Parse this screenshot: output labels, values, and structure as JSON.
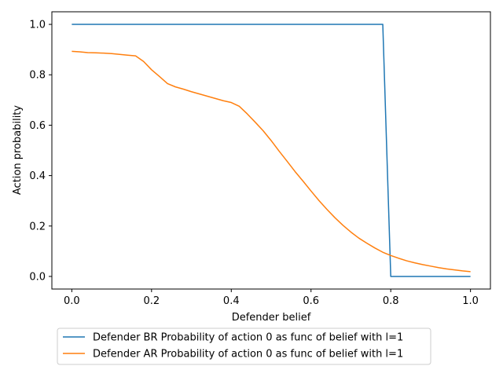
{
  "chart_data": {
    "type": "line",
    "xlabel": "Defender belief",
    "ylabel": "Action probability",
    "xlim": [
      -0.05,
      1.05
    ],
    "ylim": [
      -0.05,
      1.05
    ],
    "xticks": [
      0.0,
      0.2,
      0.4,
      0.6,
      0.8,
      1.0
    ],
    "xtick_labels": [
      "0.0",
      "0.2",
      "0.4",
      "0.6",
      "0.8",
      "1.0"
    ],
    "yticks": [
      0.0,
      0.2,
      0.4,
      0.6,
      0.8,
      1.0
    ],
    "ytick_labels": [
      "0.0",
      "0.2",
      "0.4",
      "0.6",
      "0.8",
      "1.0"
    ],
    "grid": false,
    "legend_position": "below plot",
    "series": [
      {
        "name": "Defender BR Probability of action 0 as func of belief with l=1",
        "color": "#1f77b4",
        "x": [
          0.0,
          0.78,
          0.8,
          1.0
        ],
        "y": [
          1.0,
          1.0,
          0.0,
          0.0
        ]
      },
      {
        "name": "Defender AR Probability of action 0 as func of belief with l=1",
        "color": "#ff7f0e",
        "x": [
          0.0,
          0.02,
          0.04,
          0.06,
          0.08,
          0.1,
          0.12,
          0.14,
          0.16,
          0.18,
          0.2,
          0.22,
          0.24,
          0.26,
          0.28,
          0.3,
          0.32,
          0.34,
          0.36,
          0.38,
          0.4,
          0.42,
          0.44,
          0.46,
          0.48,
          0.5,
          0.52,
          0.54,
          0.56,
          0.58,
          0.6,
          0.62,
          0.64,
          0.66,
          0.68,
          0.7,
          0.72,
          0.74,
          0.76,
          0.78,
          0.8,
          0.82,
          0.84,
          0.86,
          0.88,
          0.9,
          0.92,
          0.94,
          0.96,
          0.98,
          1.0
        ],
        "y": [
          0.893,
          0.891,
          0.888,
          0.887,
          0.886,
          0.884,
          0.881,
          0.878,
          0.875,
          0.853,
          0.82,
          0.793,
          0.765,
          0.752,
          0.743,
          0.733,
          0.724,
          0.715,
          0.706,
          0.697,
          0.69,
          0.675,
          0.645,
          0.612,
          0.578,
          0.539,
          0.497,
          0.457,
          0.416,
          0.378,
          0.339,
          0.301,
          0.266,
          0.233,
          0.203,
          0.176,
          0.152,
          0.132,
          0.113,
          0.096,
          0.083,
          0.072,
          0.062,
          0.054,
          0.047,
          0.041,
          0.035,
          0.03,
          0.026,
          0.022,
          0.019
        ]
      }
    ]
  }
}
